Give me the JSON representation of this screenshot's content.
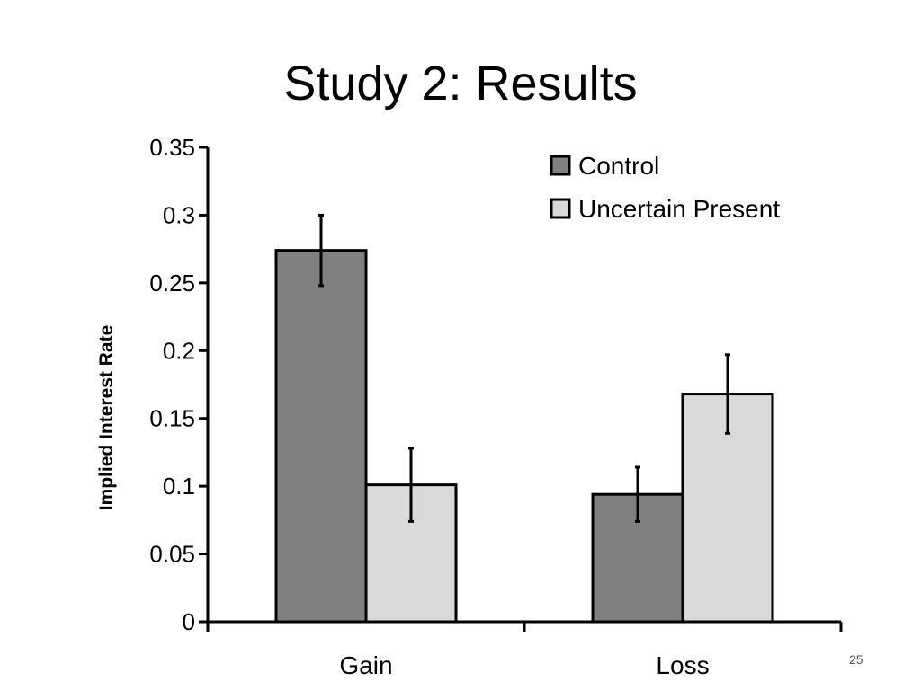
{
  "slide": {
    "title": "Study 2: Results",
    "number": "25"
  },
  "chart_data": {
    "type": "bar",
    "title": "",
    "xlabel": "",
    "ylabel": "Implied Interest Rate",
    "categories": [
      "Gain",
      "Loss"
    ],
    "ylim": [
      0,
      0.35
    ],
    "yticks": [
      "0",
      "0.05",
      "0.1",
      "0.15",
      "0.2",
      "0.25",
      "0.3",
      "0.35"
    ],
    "grid": false,
    "legend_position": "top-right",
    "series": [
      {
        "name": "Control",
        "color": "#808080",
        "values": [
          0.274,
          0.094
        ],
        "error": [
          0.026,
          0.02
        ]
      },
      {
        "name": "Uncertain Present",
        "color": "#d9d9d9",
        "values": [
          0.101,
          0.168
        ],
        "error": [
          0.027,
          0.029
        ]
      }
    ]
  }
}
